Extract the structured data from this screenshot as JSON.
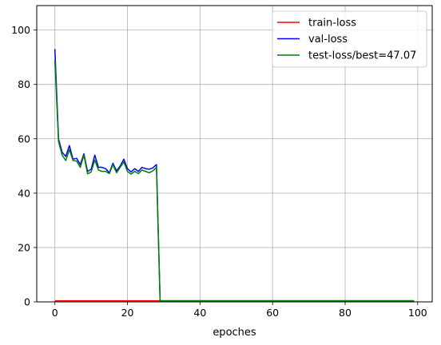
{
  "chart_data": {
    "type": "line",
    "title": "",
    "xlabel": "epoches",
    "ylabel": "",
    "xlim": [
      -5,
      104
    ],
    "ylim": [
      0,
      109
    ],
    "xticks": [
      0,
      20,
      40,
      60,
      80,
      100
    ],
    "yticks": [
      0,
      20,
      40,
      60,
      80,
      100
    ],
    "grid": true,
    "legend": "top-right",
    "series": [
      {
        "name": "train-loss",
        "color": "#ff0000",
        "x": [
          0,
          29
        ],
        "y": [
          0.4,
          0.4
        ]
      },
      {
        "name": "val-loss",
        "color": "#0000ff",
        "x": [
          0,
          1,
          2,
          3,
          4,
          5,
          6,
          7,
          8,
          9,
          10,
          11,
          12,
          13,
          14,
          15,
          16,
          17,
          18,
          19,
          20,
          21,
          22,
          23,
          24,
          25,
          26,
          27,
          28,
          29,
          30,
          99
        ],
        "y": [
          93,
          60,
          55,
          53.5,
          57.5,
          52.5,
          52.8,
          50.5,
          54.5,
          48,
          48.8,
          54,
          49.5,
          49.5,
          49,
          47.5,
          51,
          48.2,
          50,
          52.5,
          49,
          47.8,
          49,
          48,
          49.5,
          49,
          48.8,
          49.3,
          50.5,
          0.4,
          0.4,
          0.4
        ]
      },
      {
        "name": "test-loss/best=47.07",
        "color": "#008000",
        "x": [
          0,
          1,
          2,
          3,
          4,
          5,
          6,
          7,
          8,
          9,
          10,
          11,
          12,
          13,
          14,
          15,
          16,
          17,
          18,
          19,
          20,
          21,
          22,
          23,
          24,
          25,
          26,
          27,
          28,
          29,
          30,
          99
        ],
        "y": [
          89,
          59,
          54,
          52,
          56,
          52,
          51.8,
          49.5,
          54,
          47.1,
          47.8,
          52.2,
          48.5,
          48,
          48,
          47.2,
          50.5,
          47.5,
          49.5,
          51.5,
          48,
          47,
          48,
          47.2,
          48.5,
          48,
          47.5,
          48.2,
          49.5,
          0.4,
          0.4,
          0.4
        ]
      }
    ]
  }
}
